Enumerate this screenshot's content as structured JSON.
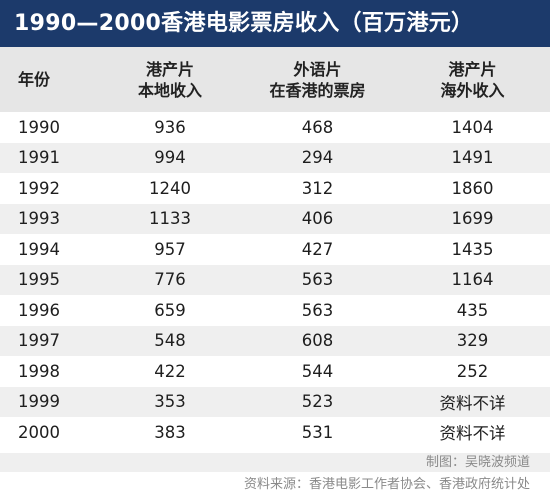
{
  "title": "1990—2000香港电影票房收入（百万港元）",
  "header": {
    "col0": [
      "年份"
    ],
    "col1": [
      "港产片",
      "本地收入"
    ],
    "col2": [
      "外语片",
      "在香港的票房"
    ],
    "col3": [
      "港产片",
      "海外收入"
    ]
  },
  "rows": [
    [
      "1990",
      "936",
      "468",
      "1404"
    ],
    [
      "1991",
      "994",
      "294",
      "1491"
    ],
    [
      "1992",
      "1240",
      "312",
      "1860"
    ],
    [
      "1993",
      "1133",
      "406",
      "1699"
    ],
    [
      "1994",
      "957",
      "427",
      "1435"
    ],
    [
      "1995",
      "776",
      "563",
      "1164"
    ],
    [
      "1996",
      "659",
      "563",
      "435"
    ],
    [
      "1997",
      "548",
      "608",
      "329"
    ],
    [
      "1998",
      "422",
      "544",
      "252"
    ],
    [
      "1999",
      "353",
      "523",
      "资料不详"
    ],
    [
      "2000",
      "383",
      "531",
      "资料不详"
    ]
  ],
  "footer": {
    "credit": "制图：吴晓波频道",
    "source": "资料来源：香港电影工作者协会、香港政府统计处"
  }
}
